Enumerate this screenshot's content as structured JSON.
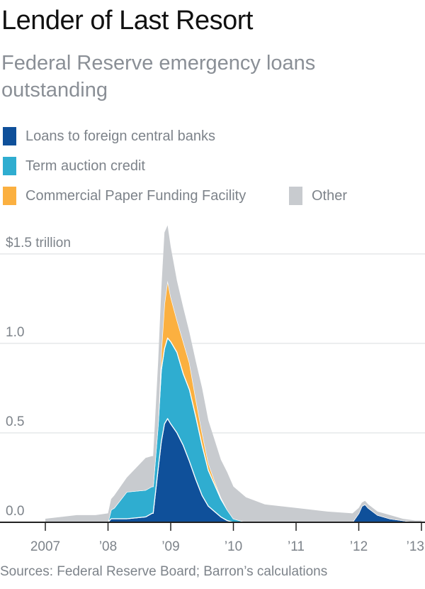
{
  "chart_data": {
    "type": "area",
    "stacked": true,
    "title": "Lender of Last Resort",
    "subtitle": "Federal Reserve emergency loans outstanding",
    "x_axis": {
      "range": [
        2007.0,
        2013.0
      ],
      "ticks": [
        {
          "value": 2007,
          "label": "2007"
        },
        {
          "value": 2008,
          "label": "’08"
        },
        {
          "value": 2009,
          "label": "’09"
        },
        {
          "value": 2010,
          "label": "’10"
        },
        {
          "value": 2011,
          "label": "’11"
        },
        {
          "value": 2012,
          "label": "’12"
        },
        {
          "value": 2013,
          "label": "’13"
        }
      ]
    },
    "y_axis": {
      "range": [
        0,
        1.65
      ],
      "unit": "trillion dollars",
      "ticks": [
        {
          "value": 0.0,
          "label": "0.0"
        },
        {
          "value": 0.5,
          "label": "0.5"
        },
        {
          "value": 1.0,
          "label": "1.0"
        },
        {
          "value": 1.5,
          "label": "$1.5 trillion"
        }
      ]
    },
    "grid": true,
    "legend_position": "top",
    "x": [
      2007.0,
      2007.5,
      2007.8,
      2008.0,
      2008.05,
      2008.1,
      2008.3,
      2008.6,
      2008.7,
      2008.72,
      2008.8,
      2008.85,
      2008.9,
      2008.95,
      2009.0,
      2009.1,
      2009.2,
      2009.3,
      2009.4,
      2009.5,
      2009.6,
      2009.7,
      2009.8,
      2009.9,
      2010.0,
      2010.1,
      2010.2,
      2010.5,
      2011.0,
      2011.5,
      2011.9,
      2012.0,
      2012.05,
      2012.1,
      2012.15,
      2012.3,
      2012.5,
      2012.7,
      2012.9,
      2013.0
    ],
    "series": [
      {
        "name": "Loans to foreign central banks",
        "color": "#0f509a",
        "values": [
          0,
          0,
          0,
          0,
          0.02,
          0.02,
          0.02,
          0.03,
          0.05,
          0.05,
          0.3,
          0.45,
          0.55,
          0.58,
          0.55,
          0.5,
          0.43,
          0.34,
          0.24,
          0.15,
          0.09,
          0.06,
          0.03,
          0.01,
          0,
          0,
          0,
          0,
          0,
          0,
          0,
          0.05,
          0.09,
          0.1,
          0.08,
          0.04,
          0.02,
          0.01,
          0,
          0
        ]
      },
      {
        "name": "Term auction credit",
        "color": "#2fadd0",
        "values": [
          0,
          0,
          0,
          0,
          0.05,
          0.06,
          0.15,
          0.15,
          0.15,
          0.15,
          0.25,
          0.4,
          0.42,
          0.45,
          0.46,
          0.45,
          0.4,
          0.4,
          0.35,
          0.28,
          0.2,
          0.15,
          0.1,
          0.06,
          0.02,
          0.01,
          0,
          0,
          0,
          0,
          0,
          0,
          0,
          0,
          0,
          0,
          0,
          0,
          0,
          0
        ]
      },
      {
        "name": "Commercial Paper Funding Facility",
        "color": "#fbb040",
        "values": [
          0,
          0,
          0,
          0,
          0,
          0,
          0,
          0,
          0,
          0,
          0,
          0.1,
          0.25,
          0.32,
          0.25,
          0.18,
          0.18,
          0.15,
          0.1,
          0.07,
          0.04,
          0.02,
          0.01,
          0,
          0,
          0,
          0,
          0,
          0,
          0,
          0,
          0,
          0,
          0,
          0,
          0,
          0,
          0,
          0,
          0
        ]
      },
      {
        "name": "Other",
        "color": "#c8cbcf",
        "values": [
          0.02,
          0.04,
          0.04,
          0.05,
          0.06,
          0.07,
          0.08,
          0.18,
          0.17,
          0.17,
          0.35,
          0.35,
          0.4,
          0.31,
          0.28,
          0.22,
          0.19,
          0.17,
          0.21,
          0.25,
          0.24,
          0.23,
          0.21,
          0.21,
          0.18,
          0.16,
          0.14,
          0.1,
          0.08,
          0.06,
          0.05,
          0.03,
          0.02,
          0.02,
          0.02,
          0.02,
          0.02,
          0.01,
          0.01,
          0.01
        ]
      }
    ],
    "legend": [
      {
        "name": "Loans to foreign central banks",
        "color": "#0f509a"
      },
      {
        "name": "Term auction credit",
        "color": "#2fadd0"
      },
      {
        "name": "Commercial Paper Funding Facility",
        "color": "#fbb040"
      },
      {
        "name": "Other",
        "color": "#c8cbcf"
      }
    ],
    "source": "Sources: Federal Reserve Board; Barron’s calculations"
  }
}
